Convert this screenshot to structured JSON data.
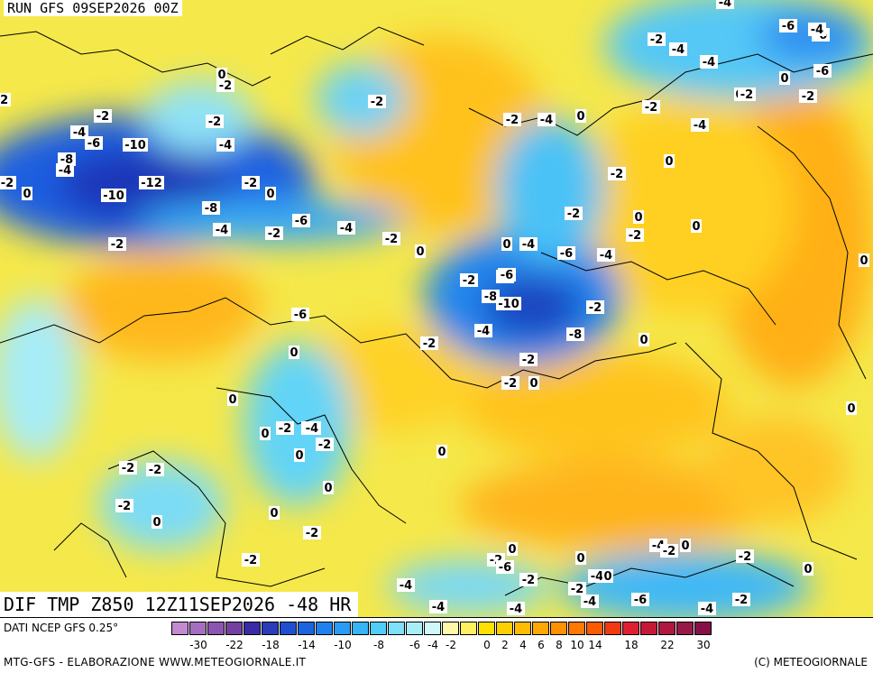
{
  "header": {
    "run_title": "RUN GFS 09SEP2026 00Z"
  },
  "map": {
    "title": "DIF TMP Z850 12Z11SEP2026 -48 HR",
    "contour_labels": [
      "-2",
      "0",
      "-6",
      "-4",
      "-4",
      "-2",
      "0",
      "-2",
      "-4",
      "-6",
      "-6",
      "-4",
      "-2",
      "-2",
      "-4",
      "-2",
      "0",
      "-2",
      "-2",
      "-4",
      "-6",
      "-8",
      "-10",
      "-4",
      "-4",
      "-6",
      "-2",
      "-4",
      "-12",
      "-10",
      "-8",
      "-4",
      "0",
      "0",
      "-2",
      "-6",
      "-4",
      "-2",
      "0",
      "-2",
      "0",
      "-2",
      "-2",
      "-4",
      "0",
      "0",
      "-2",
      "-2",
      "0",
      "-2",
      "-4",
      "-6",
      "-8",
      "-10",
      "-4",
      "-8",
      "-2",
      "0",
      "-4",
      "-6",
      "-2",
      "0",
      "-2",
      "-2",
      "0",
      "0",
      "-2",
      "-4",
      "0",
      "0",
      "-2",
      "0",
      "-2",
      "-2",
      "-2",
      "0",
      "0",
      "0",
      "-2",
      "-2",
      "0",
      "0",
      "-2",
      "-4",
      "0",
      "-2",
      "-2",
      "-6",
      "0",
      "-2",
      "-4",
      "-2",
      "-4",
      "-4",
      "-4",
      "-6",
      "0",
      "-4",
      "-2",
      "-4",
      "-4",
      "0",
      "-2",
      "-2",
      "0",
      "0"
    ]
  },
  "legend": {
    "data_source": "DATI NCEP GFS 0.25°",
    "colors": [
      "#c28ad0",
      "#a66ec0",
      "#8c55b0",
      "#7440a0",
      "#3a2aa8",
      "#2a3cb8",
      "#1f4fd0",
      "#1a64e0",
      "#2080f0",
      "#2a9cf5",
      "#35b4f8",
      "#50cdf8",
      "#7fe0f8",
      "#a8eef8",
      "#d0f8f8",
      "#fff8a8",
      "#fff060",
      "#ffe000",
      "#ffd000",
      "#ffbc00",
      "#ffa800",
      "#ff9000",
      "#ff7800",
      "#ff5a00",
      "#f03a10",
      "#e02030",
      "#c81838",
      "#b01840",
      "#981848",
      "#861048"
    ],
    "tick_labels": [
      "-30",
      "-22",
      "-18",
      "-14",
      "-10",
      "-8",
      "-6",
      "-4",
      "-2",
      "0",
      "2",
      "4",
      "6",
      "8",
      "10",
      "14",
      "18",
      "22",
      "30"
    ],
    "tick_segment_index": [
      1,
      3,
      5,
      7,
      9,
      11,
      13,
      14,
      15,
      17,
      18,
      19,
      20,
      21,
      22,
      23,
      25,
      27,
      29
    ]
  },
  "footer": {
    "credit_left": "MTG-GFS - ELABORAZIONE WWW.METEOGIORNALE.IT",
    "credit_right": "(C) METEOGIORNALE"
  }
}
